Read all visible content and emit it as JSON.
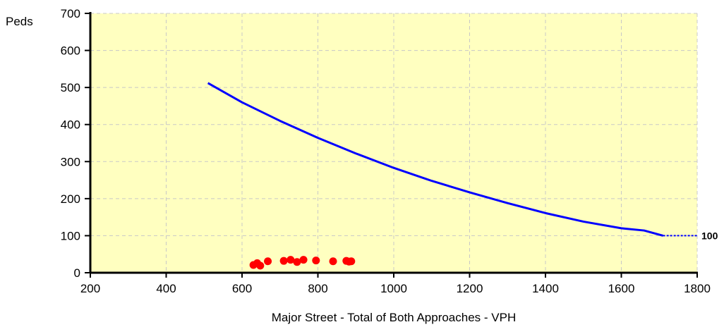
{
  "colors": {
    "plot_background": "#ffffc0",
    "curve": "#0000ff",
    "points": "#ff0000",
    "axis": "#000000",
    "grid": "#c8c8c8"
  },
  "chart_data": {
    "type": "line",
    "title": "",
    "xlabel": "Major Street - Total of Both Approaches - VPH",
    "ylabel": "Peds",
    "xlim": [
      200,
      1800
    ],
    "ylim": [
      0,
      700
    ],
    "x_ticks": [
      200,
      400,
      600,
      800,
      1000,
      1200,
      1400,
      1600,
      1800
    ],
    "y_ticks": [
      0,
      100,
      200,
      300,
      400,
      500,
      600,
      700
    ],
    "x_tick_labels": [
      "200",
      "400",
      "600",
      "800",
      "1000",
      "1200",
      "1400",
      "1600",
      "1800"
    ],
    "y_tick_labels": [
      "0",
      "100",
      "200",
      "300",
      "400",
      "500",
      "600",
      "700"
    ],
    "grid": true,
    "legend": "none",
    "series": [
      {
        "kind": "line",
        "x": [
          510,
          600,
          700,
          800,
          900,
          1000,
          1100,
          1200,
          1300,
          1400,
          1500,
          1600,
          1660,
          1710
        ],
        "y": [
          512,
          460,
          410,
          364,
          322,
          283,
          248,
          217,
          188,
          161,
          138,
          120,
          114,
          100
        ]
      },
      {
        "kind": "line",
        "style": "dashed",
        "x": [
          1710,
          1800
        ],
        "y": [
          100,
          100
        ],
        "end_label": "100"
      },
      {
        "kind": "scatter",
        "x": [
          630,
          640,
          648,
          668,
          710,
          728,
          745,
          762,
          795,
          840,
          875,
          882,
          888
        ],
        "y": [
          21,
          26,
          19,
          31,
          32,
          35,
          29,
          35,
          33,
          31,
          32,
          30,
          31
        ]
      }
    ]
  }
}
